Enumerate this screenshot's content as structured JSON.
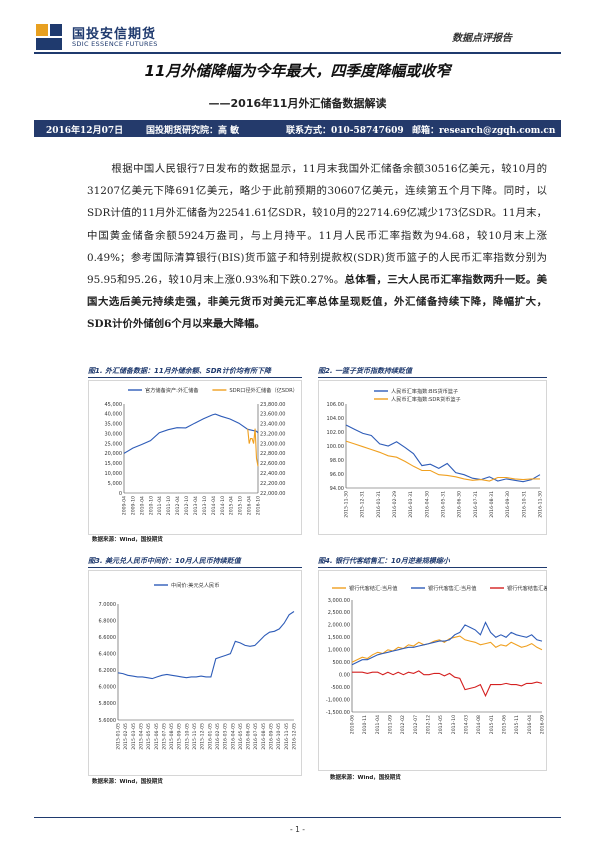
{
  "header": {
    "logo_cn": "国投安信期货",
    "logo_en": "SDIC ESSENCE FUTURES",
    "report_type": "数据点评报告"
  },
  "title": "11月外储降幅为今年最大，四季度降幅或收窄",
  "subtitle": "——2016年11月外汇储备数据解读",
  "info_bar": {
    "date": "2016年12月07日",
    "institute": "国投期货研究院：高  敏",
    "contact": "联系方式：010-58747609",
    "email": "邮箱：research@zgqh.com.cn"
  },
  "body": {
    "p1_normal": "根据中国人民银行7日发布的数据显示，11月末我国外汇储备余额30516亿美元，较10月的31207亿美元下降691亿美元，略少于此前预期的30607亿美元，连续第五个月下降。同时，以SDR计值的11月外汇储备为22541.61亿SDR，较10月的22714.69亿减少173亿SDR。11月末，中国黄金储备余额5924万盎司，与上月持平。11月人民币汇率指数为94.68，较10月末上涨0.49%；参考国际清算银行(BIS)货币篮子和特别提款权(SDR)货币篮子的人民币汇率指数分别为95.95和95.26，较10月末上涨0.93%和下跌0.27%。",
    "p1_bold": "总体看，三大人民币汇率指数两升一贬。美国大选后美元持续走强，非美元货币对美元汇率总体呈现贬值，外汇储备持续下降，降幅扩大，SDR计价外储创6个月以来最大降幅。"
  },
  "figures": {
    "fig1": {
      "title": "图1. 外汇储备数据：11月外储余额、SDR计价均有所下降",
      "source": "数据来源：Wind，国投期货"
    },
    "fig2": {
      "title": "图2. 一篮子货币指数持续贬值",
      "source": ""
    },
    "fig3": {
      "title": "图3. 美元兑人民币中间价：10月人民币持续贬值",
      "source": "数据来源：Wind，国投期货"
    },
    "fig4": {
      "title": "图4. 银行代客结售汇：10月逆差规模缩小",
      "source": "数据来源：Wind，国投期货"
    }
  },
  "chart_data": [
    {
      "type": "line",
      "series": [
        {
          "name": "官方储备资产:外汇储备",
          "axis": "left",
          "color": "#2e5cb8",
          "x": [
            "2009-04",
            "2009-10",
            "2010-04",
            "2010-10",
            "2011-04",
            "2011-10",
            "2012-04",
            "2012-10",
            "2013-04",
            "2013-10",
            "2014-04",
            "2014-06",
            "2014-10",
            "2015-04",
            "2015-10",
            "2016-04",
            "2016-10",
            "2016-11"
          ],
          "values": [
            20000,
            22700,
            24500,
            26500,
            30500,
            32000,
            33000,
            32900,
            35300,
            37500,
            39500,
            39900,
            38800,
            37400,
            35300,
            32200,
            31200,
            30500
          ]
        },
        {
          "name": "SDR口径外汇储备（亿SDR）",
          "axis": "right",
          "color": "#f0a020",
          "x": [
            "2016-04",
            "2016-05",
            "2016-06",
            "2016-07",
            "2016-08",
            "2016-09",
            "2016-10",
            "2016-11"
          ],
          "values": [
            23300,
            23000,
            23100,
            23100,
            23000,
            23300,
            22700,
            22540
          ]
        }
      ],
      "y_left": {
        "min": 0,
        "max": 45000,
        "ticks": [
          "0",
          "5,000",
          "10,000",
          "15,000",
          "20,000",
          "25,000",
          "30,000",
          "35,000",
          "40,000",
          "45,000"
        ]
      },
      "y_right": {
        "min": 22000,
        "max": 23800,
        "ticks": [
          "22,000.00",
          "22,200.00",
          "22,400.00",
          "22,600.00",
          "22,800.00",
          "23,000.00",
          "23,200.00",
          "23,400.00",
          "23,600.00",
          "23,800.00"
        ]
      },
      "x_ticks": [
        "2009-04",
        "2009-10",
        "2010-04",
        "2010-10",
        "2011-04",
        "2011-10",
        "2012-04",
        "2012-10",
        "2013-04",
        "2013-10",
        "2014-04",
        "2014-10",
        "2015-04",
        "2015-10",
        "2016-04",
        "2016-10"
      ],
      "grid": false,
      "legend": "top"
    },
    {
      "type": "line",
      "series": [
        {
          "name": "人民币汇率指数:BIS货币篮子",
          "color": "#2e5cb8",
          "values": [
            103.0,
            102.4,
            101.8,
            101.5,
            100.3,
            100.0,
            100.6,
            99.8,
            98.9,
            97.2,
            97.4,
            96.8,
            97.5,
            96.2,
            95.9,
            95.4,
            95.2,
            95.6,
            95.0,
            95.3,
            95.1,
            94.9,
            95.2,
            95.9
          ]
        },
        {
          "name": "人民币汇率指数:SDR货币篮子",
          "color": "#f0a020",
          "values": [
            100.7,
            100.3,
            99.9,
            99.5,
            99.1,
            98.6,
            98.4,
            97.8,
            97.1,
            96.5,
            96.5,
            95.9,
            95.8,
            95.6,
            95.3,
            95.1,
            95.2,
            95.0,
            95.5,
            95.5,
            95.3,
            95.2,
            95.3,
            95.3
          ]
        }
      ],
      "y_ticks": [
        "94.00",
        "96.00",
        "98.00",
        "100.00",
        "102.00",
        "104.00",
        "106.00"
      ],
      "ylim": [
        94,
        106
      ],
      "x_ticks": [
        "2015-11-30",
        "2015-12-31",
        "2016-01-31",
        "2016-02-29",
        "2016-03-31",
        "2016-04-30",
        "2016-05-31",
        "2016-06-30",
        "2016-07-31",
        "2016-08-31",
        "2016-09-30",
        "2016-10-31",
        "2016-11-30"
      ],
      "grid": false,
      "legend": "top"
    },
    {
      "type": "line",
      "series": [
        {
          "name": "中间价:美元兑人民币",
          "color": "#2e5cb8",
          "values": [
            6.17,
            6.16,
            6.14,
            6.13,
            6.12,
            6.12,
            6.11,
            6.1,
            6.12,
            6.14,
            6.15,
            6.14,
            6.13,
            6.12,
            6.11,
            6.12,
            6.12,
            6.13,
            6.12,
            6.12,
            6.34,
            6.36,
            6.38,
            6.4,
            6.55,
            6.53,
            6.5,
            6.49,
            6.5,
            6.56,
            6.62,
            6.66,
            6.67,
            6.7,
            6.77,
            6.87,
            6.91
          ]
        }
      ],
      "y_ticks": [
        "5.6000",
        "5.8000",
        "6.0000",
        "6.2000",
        "6.4000",
        "6.6000",
        "6.8000",
        "7.0000"
      ],
      "ylim": [
        5.6,
        7.0
      ],
      "x_ticks": [
        "2015-01-05",
        "2015-02-05",
        "2015-03-05",
        "2015-04-05",
        "2015-05-05",
        "2015-06-05",
        "2015-07-05",
        "2015-08-05",
        "2015-09-05",
        "2015-10-05",
        "2015-11-05",
        "2015-12-05",
        "2016-01-05",
        "2016-02-05",
        "2016-03-05",
        "2016-04-05",
        "2016-05-05",
        "2016-06-05",
        "2016-07-05",
        "2016-08-05",
        "2016-09-05",
        "2016-10-05",
        "2016-11-05",
        "2016-12-05"
      ],
      "grid": false,
      "legend": "top"
    },
    {
      "type": "line",
      "series": [
        {
          "name": "银行代客结汇:当月值",
          "color": "#f0a020",
          "values": [
            500,
            600,
            700,
            650,
            800,
            900,
            850,
            1000,
            950,
            1100,
            1050,
            1200,
            1150,
            1300,
            1200,
            1250,
            1350,
            1400,
            1300,
            1450,
            1500,
            1550,
            1400,
            1350,
            1300,
            1200,
            1250,
            1300,
            1100,
            1200,
            1150,
            1300,
            1200,
            1100,
            1150,
            1250,
            1100,
            1000
          ]
        },
        {
          "name": "银行代客售汇:当月值",
          "color": "#2e5cb8",
          "values": [
            400,
            500,
            600,
            600,
            700,
            800,
            850,
            900,
            950,
            1000,
            1050,
            1100,
            1100,
            1150,
            1200,
            1250,
            1300,
            1350,
            1350,
            1400,
            1600,
            1700,
            2000,
            1900,
            1800,
            1600,
            2100,
            1700,
            1500,
            1600,
            1500,
            1700,
            1600,
            1550,
            1500,
            1600,
            1400,
            1350
          ]
        },
        {
          "name": "银行代客结售汇差额:当月值",
          "color": "#d42020",
          "values": [
            100,
            100,
            100,
            50,
            100,
            100,
            0,
            100,
            0,
            100,
            0,
            100,
            50,
            150,
            0,
            0,
            50,
            50,
            -50,
            50,
            -100,
            -150,
            -600,
            -550,
            -500,
            -400,
            -850,
            -400,
            -400,
            -400,
            -350,
            -400,
            -400,
            -450,
            -350,
            -350,
            -300,
            -350
          ]
        }
      ],
      "y_ticks": [
        "-1,500.00",
        "-1,000.00",
        "-500.00",
        "0.00",
        "500.00",
        "1,000.00",
        "1,500.00",
        "2,000.00",
        "2,500.00",
        "3,000.00"
      ],
      "ylim": [
        -1500,
        3000
      ],
      "x_ticks": [
        "2010-06",
        "2010-11",
        "2011-04",
        "2011-09",
        "2012-02",
        "2012-07",
        "2012-12",
        "2013-05",
        "2013-10",
        "2014-03",
        "2014-08",
        "2015-01",
        "2015-06",
        "2015-11",
        "2016-04",
        "2016-09"
      ],
      "grid": false,
      "legend": "top"
    }
  ],
  "footer": {
    "page": "- 1 -"
  }
}
